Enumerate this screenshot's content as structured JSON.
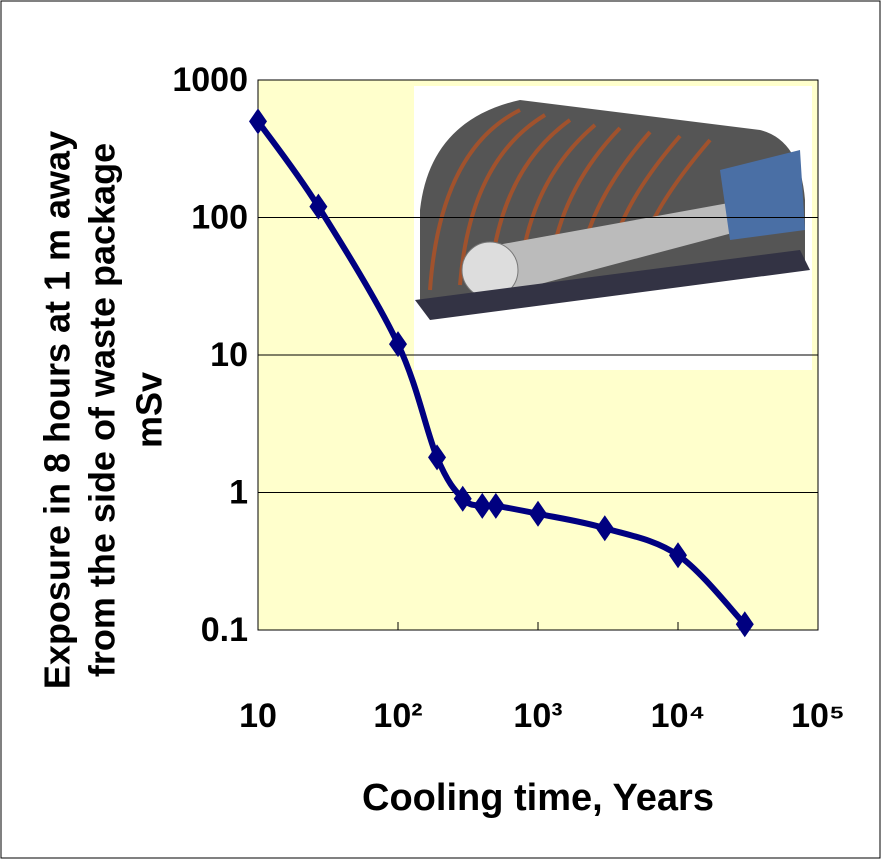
{
  "chart_data": {
    "type": "line",
    "xlabel": "Cooling time, Years",
    "ylabel": [
      "Exposure in 8 hours  at 1 m away",
      "from the side of waste package",
      "mSv"
    ],
    "x": [
      10,
      27,
      100,
      190,
      290,
      400,
      500,
      1000,
      3000,
      10000,
      30000
    ],
    "values": [
      500,
      120,
      12,
      1.8,
      0.9,
      0.8,
      0.8,
      0.7,
      0.55,
      0.35,
      0.11
    ],
    "color": "#000080",
    "log_x": true,
    "log_y": true,
    "xlim": [
      10,
      100000
    ],
    "ylim": [
      0.1,
      1000
    ],
    "xticks": [
      10,
      {
        "value": 100,
        "label": "10²"
      },
      {
        "value": 1000,
        "label": "10³"
      },
      {
        "value": 10000,
        "label": "10⁴"
      },
      {
        "value": 100000,
        "label": "10⁵"
      }
    ],
    "yticks": [
      0.1,
      1,
      10,
      100,
      1000
    ],
    "grid": true
  }
}
